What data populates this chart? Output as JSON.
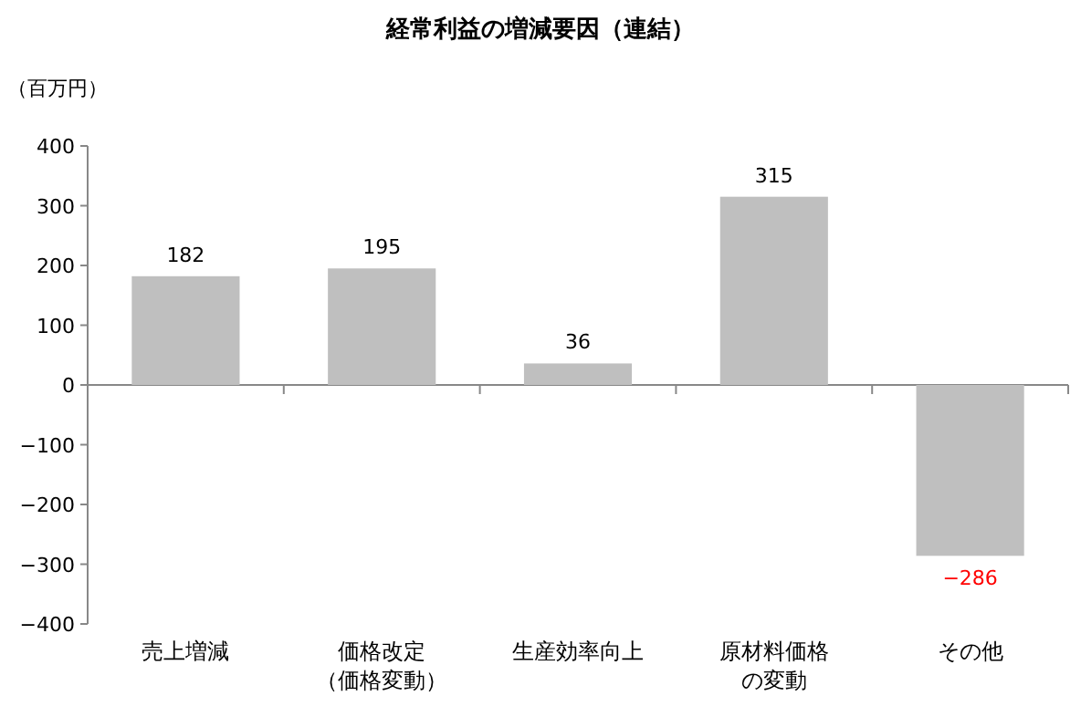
{
  "chart_data": {
    "type": "bar",
    "title": "経常利益の増減要因（連結）",
    "ylabel": "（百万円）",
    "categories": [
      "売上増減",
      "価格改定（価格変動）",
      "生産効率向上",
      "原材料価格の変動",
      "その他"
    ],
    "values": [
      182,
      195,
      36,
      315,
      -286
    ],
    "value_labels": [
      "182",
      "195",
      "36",
      "315",
      "−286"
    ],
    "color": "#bfbfbf",
    "ylim": [
      -400,
      400
    ],
    "yticks": [
      -400,
      -300,
      -200,
      -100,
      0,
      100,
      200,
      300,
      400
    ]
  }
}
